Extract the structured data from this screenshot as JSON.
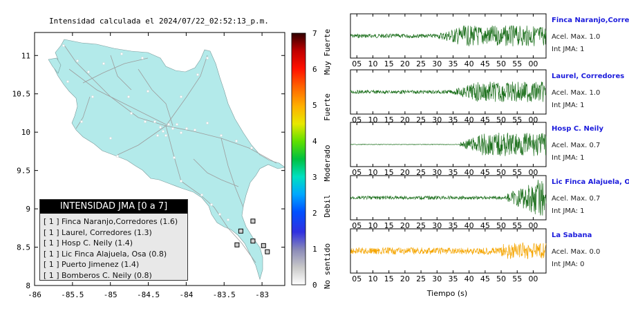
{
  "header": {
    "title": "Intensidad calculada el 2024/07/22_02:52:13_p.m."
  },
  "colors": {
    "land": "#b3eaea",
    "sea": "#ffffff",
    "road": "#999999",
    "wave_green": "#1a6e1a",
    "wave_orange": "#f5a500"
  },
  "chart_data": [
    {
      "type": "map",
      "title": "Intensidad calculada el 2024/07/22_02:52:13_p.m.",
      "x_ticks": [
        "-86",
        "-85.5",
        "-85",
        "-84.5",
        "-84",
        "-83.5",
        "-83"
      ],
      "y_ticks": [
        "11",
        "10.5",
        "10",
        "9.5",
        "9",
        "8.5",
        "8"
      ],
      "xlim": [
        -86,
        -82.7
      ],
      "ylim": [
        8,
        11.3
      ],
      "grid": false,
      "colorbar": {
        "ticks": [
          "0",
          "1",
          "2",
          "3",
          "4",
          "5",
          "6",
          "7"
        ],
        "labels": [
          "No sentido",
          "Debil",
          "Moderado",
          "Fuerte",
          "Muy Fuerte"
        ],
        "range": [
          0,
          7
        ]
      },
      "stations": [
        {
          "name": "Finca Naranjo,Corredores",
          "lon": -82.98,
          "lat": 8.52,
          "intensity": 1
        },
        {
          "name": "Laurel, Corredores",
          "lon": -82.93,
          "lat": 8.44,
          "intensity": 1
        },
        {
          "name": "Hosp C. Neily",
          "lon": -83.12,
          "lat": 8.58,
          "intensity": 1
        },
        {
          "name": "Lic Finca Alajuela, Osa",
          "lon": -83.28,
          "lat": 8.71,
          "intensity": 1
        },
        {
          "name": "Puerto Jimenez",
          "lon": -83.33,
          "lat": 8.53,
          "intensity": 1
        },
        {
          "name": "Bomberos C. Neily",
          "lon": -83.12,
          "lat": 8.84,
          "intensity": 1
        }
      ]
    },
    {
      "type": "line",
      "xlabel": "Tiempo (s)",
      "x_ticks": [
        "05",
        "10",
        "15",
        "20",
        "25",
        "30",
        "35",
        "40",
        "45",
        "50",
        "55",
        "00"
      ],
      "series": [
        {
          "name": "Finca Naranjo,Corredor",
          "acel_max": "1.0",
          "int_jma": "1",
          "onset_s": 30
        },
        {
          "name": "Laurel, Corredores",
          "acel_max": "1.0",
          "int_jma": "1",
          "onset_s": 35
        },
        {
          "name": "Hosp C. Neily",
          "acel_max": "0.7",
          "int_jma": "1",
          "onset_s": 37
        },
        {
          "name": "Lic Finca Alajuela, Osa",
          "acel_max": "0.7",
          "int_jma": "1",
          "onset_s": 52
        },
        {
          "name": "La Sabana",
          "acel_max": "0.0",
          "int_jma": "0",
          "onset_s": 0
        }
      ]
    }
  ],
  "legend": {
    "title": "INTENSIDAD JMA [0 a 7]",
    "rows": [
      {
        "level": "[ 1 ]",
        "label": "Finca Naranjo,Corredores (1.6)"
      },
      {
        "level": "[ 1 ]",
        "label": "Laurel, Corredores (1.3)"
      },
      {
        "level": "[ 1 ]",
        "label": "Hosp C. Neily (1.4)"
      },
      {
        "level": "[ 1 ]",
        "label": "Lic Finca Alajuela, Osa (0.8)"
      },
      {
        "level": "[ 1 ]",
        "label": "Puerto Jimenez (1.4)"
      },
      {
        "level": "[ 1 ]",
        "label": "Bomberos C. Neily (0.8)"
      }
    ]
  },
  "station_panels": [
    {
      "name": "Finca Naranjo,Corredor",
      "acel_label": "Acel. Max. 1.0",
      "int_label": "Int JMA: 1"
    },
    {
      "name": "Laurel, Corredores",
      "acel_label": "Acel. Max. 1.0",
      "int_label": "Int JMA: 1"
    },
    {
      "name": "Hosp C. Neily",
      "acel_label": "Acel. Max. 0.7",
      "int_label": "Int JMA: 1"
    },
    {
      "name": "Lic Finca Alajuela, Osa",
      "acel_label": "Acel. Max. 0.7",
      "int_label": "Int JMA: 1"
    },
    {
      "name": "La Sabana",
      "acel_label": "Acel. Max. 0.0",
      "int_label": "Int JMA: 0"
    }
  ]
}
